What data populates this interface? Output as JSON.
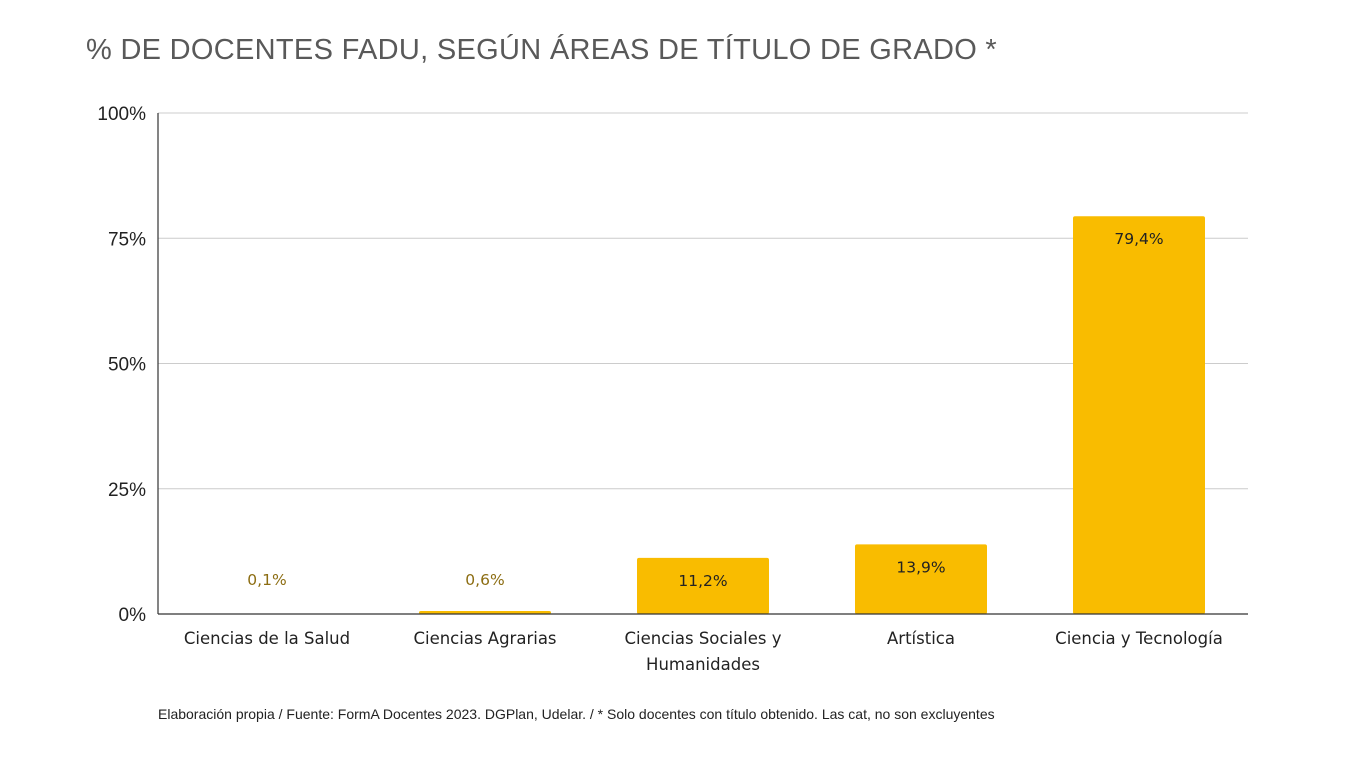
{
  "chart_data": {
    "type": "bar",
    "title": "%  DE DOCENTES FADU, SEGÚN ÁREAS DE TÍTULO DE GRADO *",
    "categories": [
      [
        "Ciencias de la Salud"
      ],
      [
        "Ciencias Agrarias"
      ],
      [
        "Ciencias Sociales y",
        "Humanidades"
      ],
      [
        "Artística"
      ],
      [
        "Ciencia y Tecnología"
      ]
    ],
    "values": [
      0.1,
      0.6,
      11.2,
      13.9,
      79.4
    ],
    "data_labels": [
      "0,1%",
      "0,6%",
      "11,2%",
      "13,9%",
      "79,4%"
    ],
    "ylim": [
      0,
      100
    ],
    "yticks": [
      0,
      25,
      50,
      75,
      100
    ],
    "ytick_labels": [
      "0%",
      "25%",
      "50%",
      "75%",
      "100%"
    ],
    "xlabel": "",
    "ylabel": "",
    "grid": true,
    "legend": "none",
    "colors": {
      "bar": "#F9BC00",
      "label_inside": "#222222",
      "label_outside": "#8C6D12",
      "grid": "#CCCCCC",
      "axis": "#333333"
    }
  },
  "footnote": "Elaboración propia / Fuente: FormA Docentes 2023. DGPlan, Udelar. / * Solo docentes con título obtenido. Las cat, no son excluyentes"
}
